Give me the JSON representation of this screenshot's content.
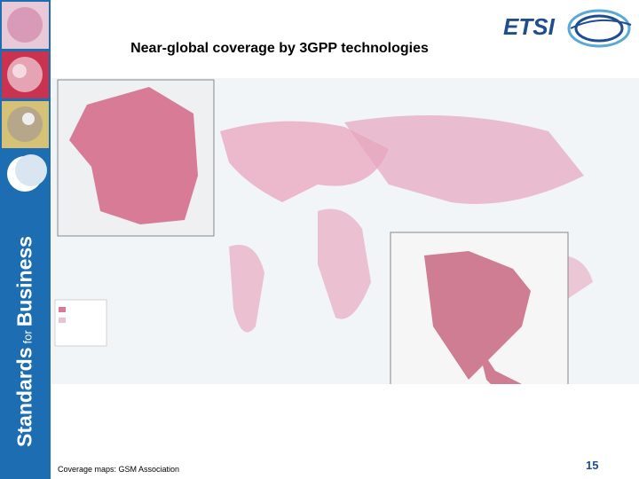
{
  "header": {
    "title": "Near-global coverage by 3GPP technologies",
    "logo": "ETSI"
  },
  "sidebar": {
    "tagline": {
      "first": "Standards",
      "middle": "for",
      "last": "Business"
    }
  },
  "footer": {
    "source": "Coverage maps: GSM Association",
    "page_number": "15"
  }
}
